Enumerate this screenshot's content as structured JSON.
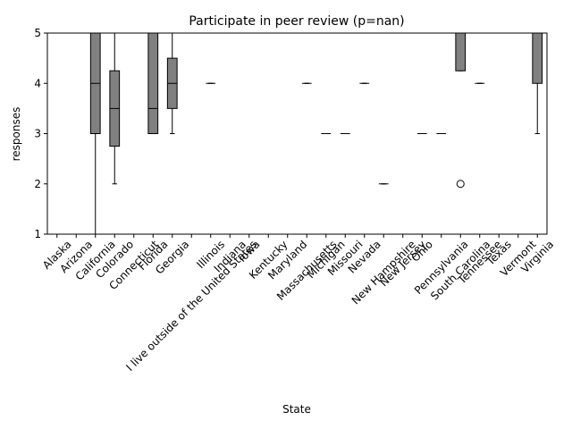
{
  "chart_data": {
    "type": "boxplot",
    "title": "Participate in peer review (p=nan)",
    "x_label": "State",
    "y_label": "responses",
    "categories": [
      "Alaska",
      "Arizona",
      "California",
      "Colorado",
      "Connecticut",
      "Florida",
      "Georgia",
      "I live outside of the United States",
      "Illinois",
      "Indiana",
      "Iowa",
      "Kentucky",
      "Maryland",
      "Massachusetts",
      "Michigan",
      "Missouri",
      "Nevada",
      "New Hampshire",
      "New Jersey",
      "Ohio",
      "Pennsylvania",
      "South Carolina",
      "Tennessee",
      "Texas",
      "Vermont",
      "Virginia"
    ],
    "color": "#808080",
    "boxes": [
      {
        "min": 1,
        "q1": 1,
        "median": 1,
        "q3": 1,
        "max": 1,
        "outliers": []
      },
      null,
      {
        "min": 1,
        "q1": 3,
        "median": 4,
        "q3": 5,
        "max": 5,
        "outliers": []
      },
      {
        "min": 2,
        "q1": 2.75,
        "median": 3.5,
        "q3": 4.25,
        "max": 5,
        "outliers": []
      },
      null,
      {
        "min": 3,
        "q1": 3,
        "median": 3.5,
        "q3": 5,
        "max": 5,
        "outliers": []
      },
      {
        "min": 3,
        "q1": 3.5,
        "median": 4,
        "q3": 4.5,
        "max": 5,
        "outliers": []
      },
      {
        "min": 5,
        "q1": 5,
        "median": 5,
        "q3": 5,
        "max": 5,
        "outliers": []
      },
      {
        "min": 4,
        "q1": 4,
        "median": 4,
        "q3": 4,
        "max": 4,
        "outliers": []
      },
      null,
      {
        "min": 5,
        "q1": 5,
        "median": 5,
        "q3": 5,
        "max": 5,
        "outliers": []
      },
      null,
      {
        "min": 5,
        "q1": 5,
        "median": 5,
        "q3": 5,
        "max": 5,
        "outliers": []
      },
      {
        "min": 4,
        "q1": 4,
        "median": 4,
        "q3": 4,
        "max": 4,
        "outliers": []
      },
      {
        "min": 3,
        "q1": 3,
        "median": 3,
        "q3": 3,
        "max": 3,
        "outliers": []
      },
      {
        "min": 3,
        "q1": 3,
        "median": 3,
        "q3": 3,
        "max": 3,
        "outliers": []
      },
      {
        "min": 4,
        "q1": 4,
        "median": 4,
        "q3": 4,
        "max": 4,
        "outliers": []
      },
      {
        "min": 2,
        "q1": 2,
        "median": 2,
        "q3": 2,
        "max": 2,
        "outliers": []
      },
      {
        "min": 5,
        "q1": 5,
        "median": 5,
        "q3": 5,
        "max": 5,
        "outliers": []
      },
      {
        "min": 3,
        "q1": 3,
        "median": 3,
        "q3": 3,
        "max": 3,
        "outliers": []
      },
      {
        "min": 3,
        "q1": 3,
        "median": 3,
        "q3": 3,
        "max": 3,
        "outliers": []
      },
      {
        "min": 4.25,
        "q1": 4.25,
        "median": 5,
        "q3": 5,
        "max": 5,
        "outliers": [
          2
        ]
      },
      {
        "min": 4,
        "q1": 4,
        "median": 4,
        "q3": 4,
        "max": 4,
        "outliers": []
      },
      null,
      null,
      {
        "min": 3,
        "q1": 4,
        "median": 5,
        "q3": 5,
        "max": 5,
        "outliers": []
      }
    ],
    "ylim": [
      1,
      5
    ],
    "yticks": [
      1,
      2,
      3,
      4,
      5
    ]
  }
}
